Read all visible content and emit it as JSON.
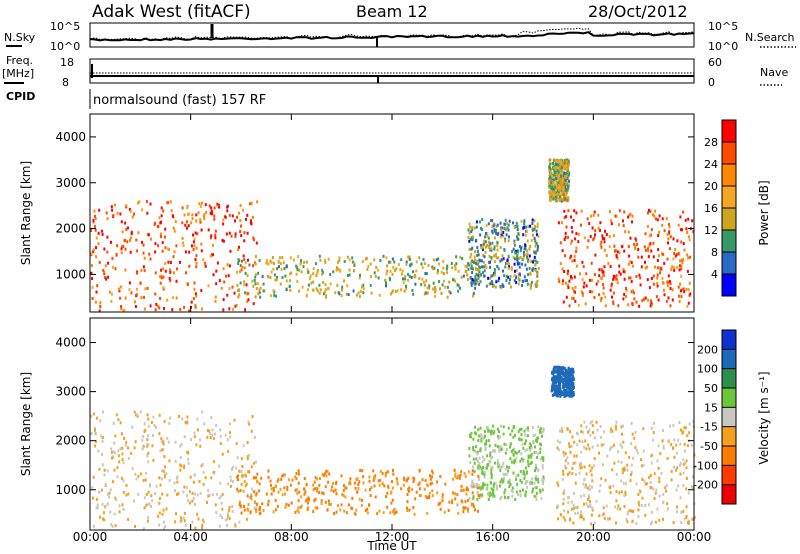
{
  "header": {
    "title": "Adak West (fitACF)",
    "beam": "Beam 12",
    "date": "28/Oct/2012"
  },
  "top_panels": {
    "nsky_label": "N.Sky",
    "nsky_ticks": [
      "10^5",
      "10^0"
    ],
    "nsearch_label": "N.Search",
    "nsearch_ticks": [
      "10^5",
      "10^0"
    ],
    "freq_label_1": "Freq.",
    "freq_label_2": "[MHz]",
    "freq_ticks": [
      "18",
      "8"
    ],
    "nave_label": "Nave",
    "nave_ticks": [
      "60",
      "0"
    ],
    "cpid_label": "CPID",
    "cpid_text": "normalsound (fast) 157 RF"
  },
  "axes": {
    "ylabel": "Slant Range [km]",
    "yticks": [
      "4000",
      "3000",
      "2000",
      "1000"
    ],
    "xlabel": "Time UT",
    "xticks": [
      "00:00",
      "04:00",
      "08:00",
      "12:00",
      "16:00",
      "20:00",
      "00:00"
    ]
  },
  "power_scale": {
    "label": "Power [dB]",
    "ticks": [
      "28",
      "24",
      "20",
      "16",
      "12",
      "8",
      "4"
    ],
    "colors": [
      "#ff0000",
      "#ff4a00",
      "#ff8800",
      "#f6a623",
      "#cfa520",
      "#339a68",
      "#2a6ac4",
      "#0000ff"
    ]
  },
  "velocity_scale": {
    "label": "Velocity [m s⁻¹]",
    "ticks": [
      "200",
      "100",
      "50",
      "15",
      "-15",
      "-50",
      "-100",
      "-200"
    ],
    "colors": [
      "#1030d0",
      "#1e6ab8",
      "#2e8f4a",
      "#6cc63a",
      "#c8c8c0",
      "#f3a020",
      "#ff7a00",
      "#ff3a00",
      "#ee0000"
    ]
  },
  "chart_data": [
    {
      "type": "heatmap",
      "title": "Power",
      "xlabel": "Time UT",
      "ylabel": "Slant Range [km]",
      "x_range": [
        "00:00",
        "24:00"
      ],
      "ylim": [
        180,
        4500
      ],
      "colorbar": {
        "label": "Power [dB]",
        "range": [
          0,
          32
        ]
      },
      "regions": [
        {
          "t_start": 0.0,
          "t_end": 6.6,
          "range_low": 200,
          "range_high": 2600,
          "power_db": 28
        },
        {
          "t_start": 5.8,
          "t_end": 15.5,
          "range_low": 500,
          "range_high": 1400,
          "power_db": 16
        },
        {
          "t_start": 15.0,
          "t_end": 17.8,
          "range_low": 700,
          "range_high": 2200,
          "power_db": 12
        },
        {
          "t_start": 18.2,
          "t_end": 19.0,
          "range_low": 2600,
          "range_high": 3500,
          "power_db": 16
        },
        {
          "t_start": 18.5,
          "t_end": 24.0,
          "range_low": 300,
          "range_high": 2400,
          "power_db": 28
        }
      ]
    },
    {
      "type": "heatmap",
      "title": "Velocity",
      "xlabel": "Time UT",
      "ylabel": "Slant Range [km]",
      "x_range": [
        "00:00",
        "24:00"
      ],
      "ylim": [
        180,
        4500
      ],
      "colorbar": {
        "label": "Velocity [m s⁻¹]",
        "range": [
          -250,
          250
        ]
      },
      "regions": [
        {
          "t_start": 0.0,
          "t_end": 6.6,
          "range_low": 200,
          "range_high": 2600,
          "velocity": 0
        },
        {
          "t_start": 5.8,
          "t_end": 15.5,
          "range_low": 500,
          "range_high": 1400,
          "velocity": -40
        },
        {
          "t_start": 15.0,
          "t_end": 18.0,
          "range_low": 800,
          "range_high": 2300,
          "velocity": 40
        },
        {
          "t_start": 18.3,
          "t_end": 19.2,
          "range_low": 2900,
          "range_high": 3500,
          "velocity": 200
        },
        {
          "t_start": 18.5,
          "t_end": 24.0,
          "range_low": 300,
          "range_high": 2400,
          "velocity": 0
        }
      ]
    }
  ]
}
